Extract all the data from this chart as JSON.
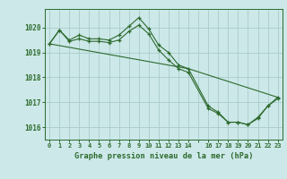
{
  "title": "Graphe pression niveau de la mer (hPa)",
  "bg_color": "#cce8e8",
  "grid_color": "#aacccc",
  "line_color": "#2d6a2d",
  "marker_color": "#2d6a2d",
  "xlim": [
    -0.5,
    23.5
  ],
  "ylim": [
    1015.5,
    1020.75
  ],
  "yticks": [
    1016,
    1017,
    1018,
    1019,
    1020
  ],
  "xtick_positions": [
    0,
    1,
    2,
    3,
    4,
    5,
    6,
    7,
    8,
    9,
    10,
    11,
    12,
    13,
    14,
    15,
    16,
    17,
    18,
    19,
    20,
    21,
    22,
    23
  ],
  "xtick_labels": [
    "0",
    "1",
    "2",
    "3",
    "4",
    "5",
    "6",
    "7",
    "8",
    "9",
    "10",
    "11",
    "12",
    "13",
    "14",
    "",
    "16",
    "17",
    "18",
    "19",
    "20",
    "21",
    "22",
    "23"
  ],
  "series1": {
    "x": [
      0,
      1,
      2,
      3,
      4,
      5,
      6,
      7,
      8,
      9,
      10,
      11,
      12,
      13,
      14,
      16,
      17,
      18,
      19,
      20,
      21,
      22,
      23
    ],
    "y": [
      1019.35,
      1019.9,
      1019.5,
      1019.7,
      1019.55,
      1019.55,
      1019.5,
      1019.7,
      1020.05,
      1020.4,
      1019.95,
      1019.3,
      1019.0,
      1018.5,
      1018.35,
      1016.85,
      1016.6,
      1016.2,
      1016.2,
      1016.1,
      1016.4,
      1016.85,
      1017.2
    ]
  },
  "series2": {
    "x": [
      0,
      1,
      2,
      3,
      4,
      5,
      6,
      7,
      8,
      9,
      10,
      11,
      12,
      13,
      14,
      16,
      17,
      18,
      19,
      20,
      21,
      22,
      23
    ],
    "y": [
      1019.35,
      1019.9,
      1019.45,
      1019.55,
      1019.45,
      1019.45,
      1019.4,
      1019.5,
      1019.85,
      1020.1,
      1019.75,
      1019.1,
      1018.7,
      1018.35,
      1018.2,
      1016.75,
      1016.55,
      1016.2,
      1016.2,
      1016.1,
      1016.35,
      1016.85,
      1017.15
    ]
  },
  "series3": {
    "x": [
      0,
      14,
      23
    ],
    "y": [
      1019.35,
      1018.35,
      1017.2
    ]
  }
}
